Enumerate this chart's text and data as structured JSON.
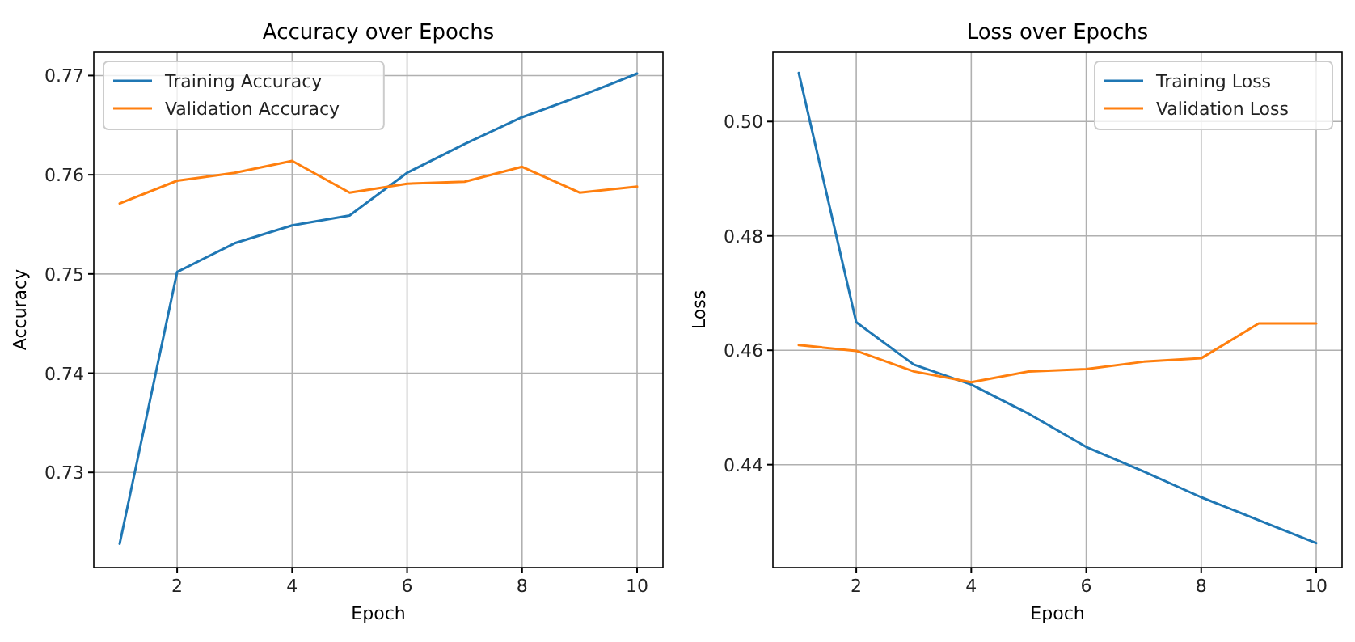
{
  "chart_data": [
    {
      "type": "line",
      "title": "Accuracy over Epochs",
      "xlabel": "Epoch",
      "ylabel": "Accuracy",
      "x": [
        1,
        2,
        3,
        4,
        5,
        6,
        7,
        8,
        9,
        10
      ],
      "series": [
        {
          "name": "Training Accuracy",
          "color": "#1f77b4",
          "values": [
            0.7228,
            0.7502,
            0.7531,
            0.7549,
            0.7559,
            0.7602,
            0.7631,
            0.7658,
            0.7679,
            0.7702
          ]
        },
        {
          "name": "Validation Accuracy",
          "color": "#ff7f0e",
          "values": [
            0.7571,
            0.7594,
            0.7602,
            0.7614,
            0.7582,
            0.7591,
            0.7593,
            0.7608,
            0.7582,
            0.7588
          ]
        }
      ],
      "xlim": [
        0.55,
        10.45
      ],
      "xticks": [
        2,
        4,
        6,
        8,
        10
      ],
      "ylim": [
        0.7204,
        0.7724
      ],
      "yticks": [
        0.73,
        0.74,
        0.75,
        0.76,
        0.77
      ],
      "grid": true,
      "legend": "top left"
    },
    {
      "type": "line",
      "title": "Loss over Epochs",
      "xlabel": "Epoch",
      "ylabel": "Loss",
      "x": [
        1,
        2,
        3,
        4,
        5,
        6,
        7,
        8,
        9,
        10
      ],
      "series": [
        {
          "name": "Training Loss",
          "color": "#1f77b4",
          "values": [
            0.5085,
            0.4649,
            0.4575,
            0.454,
            0.4489,
            0.4431,
            0.4388,
            0.4343,
            0.4303,
            0.4263
          ]
        },
        {
          "name": "Validation Loss",
          "color": "#ff7f0e",
          "values": [
            0.4609,
            0.4599,
            0.4563,
            0.4544,
            0.4563,
            0.4567,
            0.458,
            0.4586,
            0.4647,
            0.4647
          ]
        }
      ],
      "xlim": [
        0.55,
        10.45
      ],
      "xticks": [
        2,
        4,
        6,
        8,
        10
      ],
      "ylim": [
        0.422,
        0.5122
      ],
      "yticks": [
        0.44,
        0.46,
        0.48,
        {
          "value": 0.5,
          "label": "0.50"
        }
      ],
      "grid": true,
      "legend": "top right"
    }
  ]
}
